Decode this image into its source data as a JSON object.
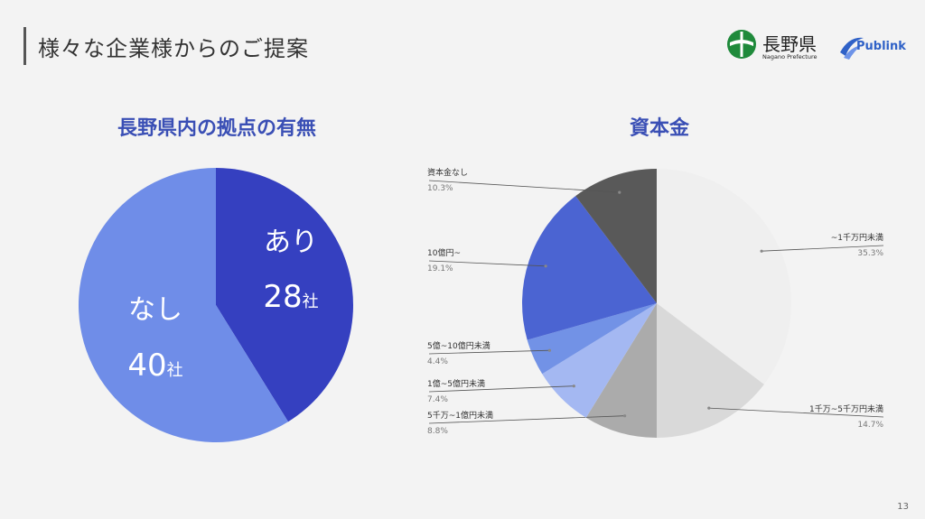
{
  "slide": {
    "title": "様々な企業様からのご提案",
    "page_number": "13"
  },
  "logos": {
    "prefecture_name": "長野県",
    "prefecture_sub": "Nagano Prefecture",
    "publink": "Publink",
    "prefecture_color": "#1f8a3b",
    "publink_color": "#2f61c7"
  },
  "chart_data": [
    {
      "type": "pie",
      "title": "長野県内の拠点の有無",
      "slices": [
        {
          "label": "あり",
          "value": 28,
          "unit": "社",
          "color": "#3540c0"
        },
        {
          "label": "なし",
          "value": 40,
          "unit": "社",
          "color": "#6f8de8"
        }
      ]
    },
    {
      "type": "pie",
      "title": "資本金",
      "slices": [
        {
          "label": "~1千万円未満",
          "percent": "35.3%",
          "value": 35.3,
          "color": "#efefef"
        },
        {
          "label": "1千万~5千万円未満",
          "percent": "14.7%",
          "value": 14.7,
          "color": "#d9d9d9"
        },
        {
          "label": "5千万~1億円未満",
          "percent": "8.8%",
          "value": 8.8,
          "color": "#ababab"
        },
        {
          "label": "1億~5億円未満",
          "percent": "7.4%",
          "value": 7.4,
          "color": "#a4b8f2"
        },
        {
          "label": "5億~10億円未満",
          "percent": "4.4%",
          "value": 4.4,
          "color": "#7292e6"
        },
        {
          "label": "10億円~",
          "percent": "19.1%",
          "value": 19.1,
          "color": "#4b64d2"
        },
        {
          "label": "資本金なし",
          "percent": "10.3%",
          "value": 10.3,
          "color": "#595959"
        }
      ]
    }
  ]
}
